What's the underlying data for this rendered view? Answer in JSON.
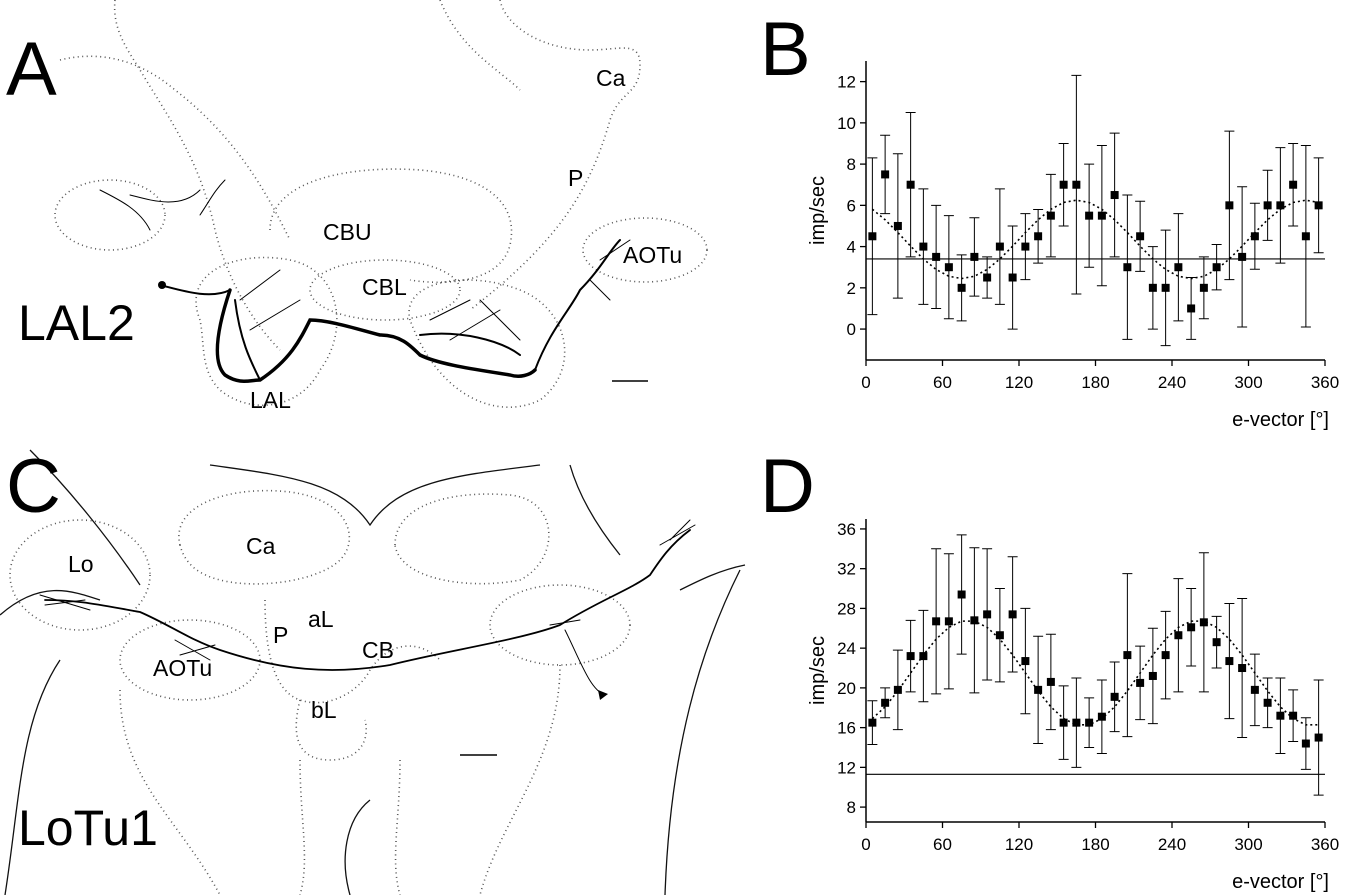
{
  "panels": [
    {
      "letter": "A",
      "title": "LAL2",
      "labels": [
        "Ca",
        "P",
        "CBU",
        "AOTu",
        "CBL",
        "LAL"
      ]
    },
    {
      "letter": "C",
      "title": "LoTu1",
      "labels": [
        "Lo",
        "Ca",
        "P",
        "aL",
        "CB",
        "AOTu",
        "bL"
      ]
    }
  ],
  "chart_data": [
    {
      "type": "scatter",
      "letter": "B",
      "y_label": "imp/sec",
      "x_label": "e-vector [°]",
      "xlim": [
        0,
        360
      ],
      "xticks": [
        0,
        60,
        120,
        180,
        240,
        300,
        360
      ],
      "ylim": [
        -1.5,
        13
      ],
      "yticks": [
        0,
        2,
        4,
        6,
        8,
        10,
        12
      ],
      "x": [
        5,
        15,
        25,
        35,
        45,
        55,
        65,
        75,
        85,
        95,
        105,
        115,
        125,
        135,
        145,
        155,
        165,
        175,
        185,
        195,
        205,
        215,
        225,
        235,
        245,
        255,
        265,
        275,
        285,
        295,
        305,
        315,
        325,
        335,
        345,
        355
      ],
      "series": [
        {
          "color": "#000000",
          "values": [
            4.5,
            7.5,
            5.0,
            7.0,
            4.0,
            3.5,
            3.0,
            2.0,
            3.5,
            2.5,
            4.0,
            2.5,
            4.0,
            4.5,
            5.5,
            7.0,
            7.0,
            5.5,
            5.5,
            6.5,
            3.0,
            4.5,
            2.0,
            2.0,
            3.0,
            1.0,
            2.0,
            3.0,
            6.0,
            3.5,
            4.5,
            6.0,
            6.0,
            7.0,
            4.5,
            6.0
          ],
          "errors": [
            3.8,
            1.9,
            3.5,
            3.5,
            2.8,
            2.5,
            2.5,
            1.6,
            1.9,
            1.0,
            2.8,
            2.5,
            1.6,
            1.3,
            2.0,
            2.0,
            5.3,
            2.5,
            3.4,
            3.0,
            3.5,
            1.7,
            2.0,
            2.8,
            2.6,
            1.5,
            1.5,
            1.1,
            3.6,
            3.4,
            1.6,
            1.7,
            2.8,
            2.0,
            4.4,
            2.3
          ]
        }
      ],
      "fit": {
        "values": [
          5.81,
          5.3,
          4.68,
          4.02,
          3.4,
          2.89,
          2.56,
          2.45,
          2.56,
          2.89,
          3.4,
          4.02,
          4.68,
          5.3,
          5.81,
          6.14,
          6.25,
          6.14,
          5.81,
          5.3,
          4.68,
          4.02,
          3.4,
          2.89,
          2.56,
          2.45,
          2.56,
          2.89,
          3.4,
          4.02,
          4.68,
          5.3,
          5.81,
          6.14,
          6.25,
          6.14
        ]
      },
      "baseline": 3.4
    },
    {
      "type": "scatter",
      "letter": "D",
      "y_label": "imp/sec",
      "x_label": "e-vector [°]",
      "xlim": [
        0,
        360
      ],
      "xticks": [
        0,
        60,
        120,
        180,
        240,
        300,
        360
      ],
      "ylim": [
        6.5,
        37
      ],
      "yticks": [
        8,
        12,
        16,
        20,
        24,
        28,
        32,
        36
      ],
      "x": [
        5,
        15,
        25,
        35,
        45,
        55,
        65,
        75,
        85,
        95,
        105,
        115,
        125,
        135,
        145,
        155,
        165,
        175,
        185,
        195,
        205,
        215,
        225,
        235,
        245,
        255,
        265,
        275,
        285,
        295,
        305,
        315,
        325,
        335,
        345,
        355
      ],
      "series": [
        {
          "color": "#000000",
          "values": [
            16.5,
            18.5,
            19.8,
            23.2,
            23.2,
            26.7,
            26.7,
            29.4,
            26.8,
            27.4,
            25.3,
            27.4,
            22.7,
            19.8,
            20.6,
            16.5,
            16.5,
            16.5,
            17.1,
            19.1,
            23.3,
            20.5,
            21.2,
            23.3,
            25.3,
            26.1,
            26.6,
            24.6,
            22.7,
            22.0,
            19.8,
            18.5,
            17.2,
            17.2,
            14.4,
            15.0
          ],
          "errors": [
            2.2,
            1.5,
            4.0,
            3.6,
            4.6,
            7.3,
            6.8,
            6.0,
            7.3,
            6.6,
            4.7,
            5.8,
            5.3,
            5.4,
            4.8,
            3.7,
            4.5,
            2.5,
            3.7,
            3.5,
            8.2,
            3.7,
            4.8,
            4.4,
            5.7,
            3.9,
            7.0,
            2.6,
            5.8,
            7.0,
            3.6,
            2.5,
            3.8,
            2.6,
            2.6,
            5.8
          ]
        }
      ],
      "fit": {
        "values": [
          16.91,
          18.09,
          19.69,
          21.5,
          23.31,
          24.91,
          26.09,
          26.72,
          26.72,
          26.09,
          24.91,
          23.31,
          21.5,
          19.69,
          18.09,
          16.91,
          16.28,
          16.28,
          16.91,
          18.09,
          19.69,
          21.5,
          23.31,
          24.91,
          26.09,
          26.72,
          26.72,
          26.09,
          24.91,
          23.31,
          21.5,
          19.69,
          18.09,
          16.91,
          16.28,
          16.28
        ]
      },
      "baseline": 11.3
    }
  ]
}
